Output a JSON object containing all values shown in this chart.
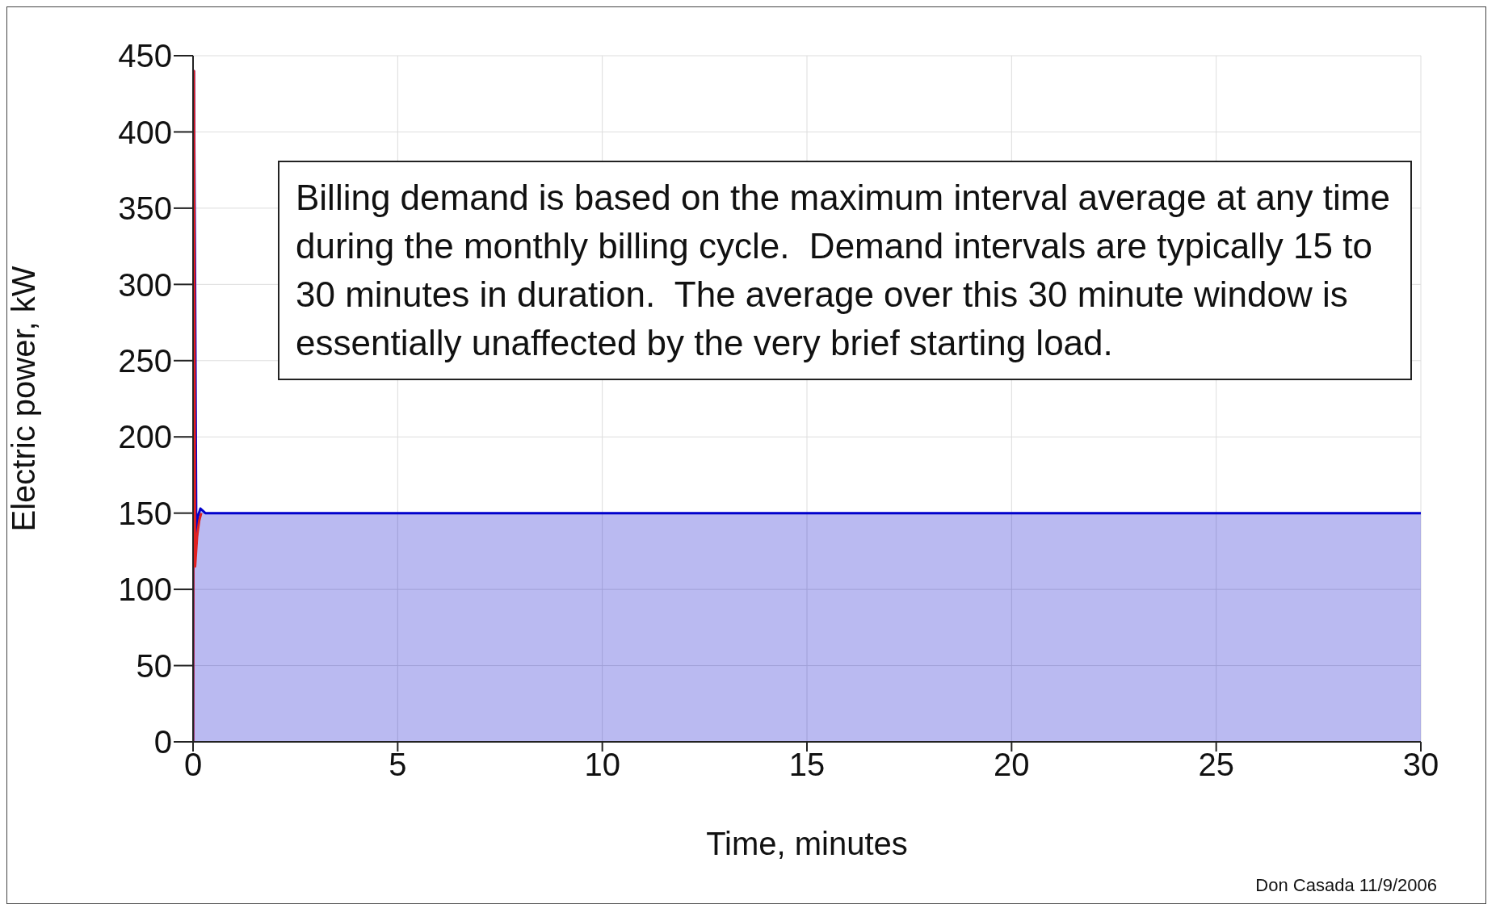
{
  "chart_data": {
    "type": "area",
    "xlabel": "Time, minutes",
    "ylabel": "Electric power, kW",
    "x": [
      0,
      0.02,
      0.05,
      0.08,
      0.12,
      0.18,
      0.3,
      5,
      10,
      15,
      20,
      25,
      30
    ],
    "series": [
      {
        "color": "#0000cc",
        "values": [
          0,
          440,
          300,
          130,
          148,
          153,
          150,
          150,
          150,
          150,
          150,
          150,
          150
        ]
      },
      {
        "type": "line",
        "color": "#e02020",
        "x": [
          0,
          0.02,
          0.05,
          0.1,
          0.15,
          0.2
        ],
        "values": [
          0,
          440,
          115,
          135,
          145,
          150
        ]
      }
    ],
    "xlim": [
      0,
      30
    ],
    "xticks": [
      0,
      5,
      10,
      15,
      20,
      25,
      30
    ],
    "ylim": [
      0,
      450
    ],
    "yticks": [
      0,
      50,
      100,
      150,
      200,
      250,
      300,
      350,
      400,
      450
    ],
    "grid": true,
    "marker": "none",
    "line_style": "solid",
    "annotations": [
      "Billing demand is based on the maximum interval average at any time during the monthly billing cycle.  Demand intervals are typically 15 to 30 minutes in duration.  The average over this 30 minute window is essentially unaffected by the very brief starting load.",
      "Don Casada 11/9/2006"
    ]
  }
}
